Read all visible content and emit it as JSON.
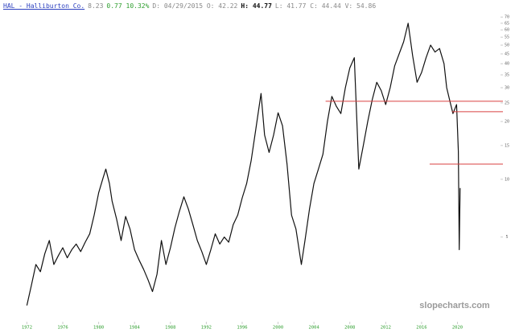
{
  "chart_data": {
    "type": "line",
    "header": [
      {
        "text": "HAL - Halliburton Co.",
        "color": "#2b3fbf"
      },
      {
        "text": "8.23",
        "color": "#888888"
      },
      {
        "text": "0.77 10.32%",
        "color": "#2e9e2e"
      },
      {
        "text": "D: 04/29/2015 O: 42.22",
        "color": "#888888"
      },
      {
        "text": "H: 44.77",
        "color": "#111111"
      },
      {
        "text": "L: 41.77 C: 44.44 V: 54.86",
        "color": "#888888"
      }
    ],
    "watermark": "slopecharts.com",
    "x": [
      1972,
      1972.5,
      1973,
      1973.5,
      1974,
      1974.5,
      1975,
      1975.5,
      1976,
      1976.5,
      1977,
      1977.5,
      1978,
      1978.5,
      1979,
      1979.5,
      1980,
      1980.5,
      1980.8,
      1981.2,
      1981.5,
      1982,
      1982.5,
      1983,
      1983.5,
      1984,
      1984.5,
      1985,
      1985.5,
      1986,
      1986.5,
      1987,
      1987.5,
      1988,
      1988.5,
      1989,
      1989.5,
      1990,
      1990.5,
      1991,
      1991.5,
      1992,
      1992.5,
      1993,
      1993.5,
      1994,
      1994.5,
      1995,
      1995.5,
      1996,
      1996.5,
      1997,
      1997.5,
      1998.1,
      1998.5,
      1999,
      1999.5,
      2000,
      2000.5,
      2001,
      2001.5,
      2002,
      2002.6,
      2003,
      2003.5,
      2004,
      2004.5,
      2005,
      2005.5,
      2006,
      2006.5,
      2007,
      2007.5,
      2008,
      2008.5,
      2009,
      2009.5,
      2010,
      2010.5,
      2011,
      2011.5,
      2012,
      2012.5,
      2013,
      2013.5,
      2014,
      2014.5,
      2015,
      2015.5,
      2016,
      2016.5,
      2017,
      2017.5,
      2018,
      2018.5,
      2018.8,
      2019.2,
      2019.5,
      2019.9,
      2020.1,
      2020.2,
      2020.3
    ],
    "series": [
      {
        "name": "HAL",
        "color": "#111111",
        "values": [
          2.2,
          2.8,
          3.6,
          3.3,
          4.1,
          4.8,
          3.6,
          4.0,
          4.4,
          3.9,
          4.3,
          4.6,
          4.2,
          4.7,
          5.2,
          6.5,
          8.5,
          10.2,
          11.3,
          9.5,
          7.7,
          6.2,
          4.8,
          6.4,
          5.5,
          4.3,
          3.8,
          3.4,
          3.0,
          2.6,
          3.2,
          4.8,
          3.6,
          4.4,
          5.6,
          6.8,
          8.1,
          7.0,
          5.8,
          4.8,
          4.2,
          3.6,
          4.3,
          5.2,
          4.6,
          5.0,
          4.7,
          5.8,
          6.5,
          8.0,
          9.5,
          12.5,
          18.0,
          28.0,
          17.0,
          13.8,
          17.0,
          22.2,
          19.0,
          12.0,
          6.5,
          5.5,
          3.6,
          4.8,
          7.0,
          9.5,
          11.3,
          13.5,
          20.0,
          27.0,
          24.0,
          22.0,
          30.0,
          38.0,
          43.0,
          11.3,
          15.0,
          20.0,
          26.0,
          32.0,
          29.0,
          24.5,
          30.0,
          39.0,
          45.0,
          52.0,
          65.0,
          44.0,
          32.0,
          36.0,
          43.0,
          50.0,
          46.0,
          48.0,
          40.0,
          30.0,
          25.0,
          22.0,
          24.5,
          14.0,
          4.3,
          9.0
        ]
      }
    ],
    "hlines": [
      {
        "value": 25.5,
        "from": 2005.3
      },
      {
        "value": 22.5,
        "from": 2019.4
      },
      {
        "value": 12,
        "from": 2016.9
      }
    ],
    "hline_color": "#d94040",
    "xlim": [
      1969,
      2024.8
    ],
    "ylim": [
      1.9,
      78
    ],
    "log_y": true,
    "xticks": [
      1972,
      1976,
      1980,
      1984,
      1988,
      1992,
      1996,
      2000,
      2004,
      2008,
      2012,
      2016,
      2020
    ],
    "yticks": [
      5,
      10,
      15,
      20,
      25,
      30,
      35,
      40,
      45,
      50,
      55,
      60,
      65,
      70
    ]
  }
}
